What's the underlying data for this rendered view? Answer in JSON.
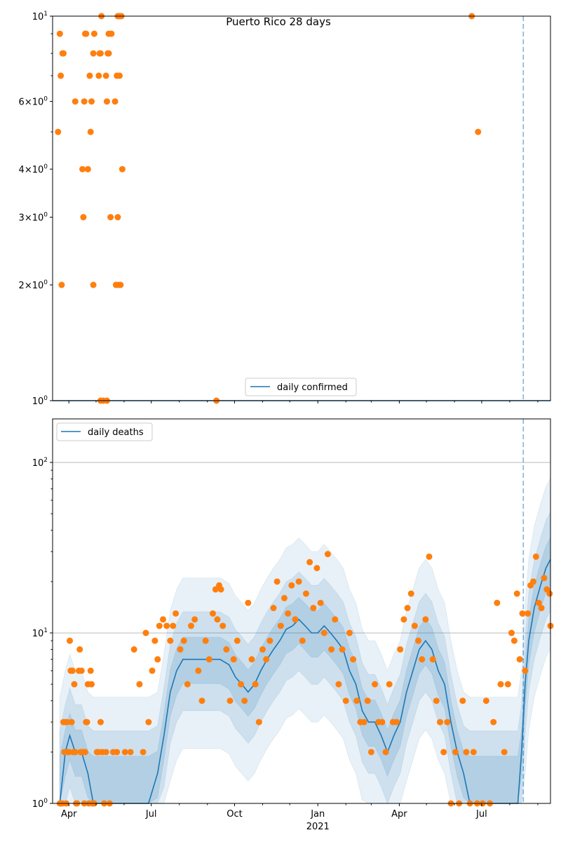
{
  "chart_data": [
    {
      "type": "scatter",
      "title": "Puerto Rico 28 days",
      "yscale": "log",
      "ylim": [
        1,
        10
      ],
      "xlim": [
        "2020-03-14",
        "2021-09-15"
      ],
      "forecast_line_date": "2021-08-16",
      "ytick_labels": [
        {
          "value": 1,
          "label": "10^0"
        },
        {
          "value": 2,
          "label": "2×10^0"
        },
        {
          "value": 3,
          "label": "3×10^0"
        },
        {
          "value": 4,
          "label": "4×10^0"
        },
        {
          "value": 6,
          "label": "6×10^0"
        },
        {
          "value": 10,
          "label": "10^1"
        }
      ],
      "legend": {
        "placement": "bottom-center",
        "entries": [
          "daily confirmed"
        ]
      },
      "line_series": {
        "name": "daily confirmed",
        "color": "#1f77b4",
        "value": 1
      },
      "points_color": "#ff7f0e",
      "points": [
        [
          "2020-03-20",
          5
        ],
        [
          "2020-03-22",
          9
        ],
        [
          "2020-03-23",
          7
        ],
        [
          "2020-03-24",
          2
        ],
        [
          "2020-03-25",
          8
        ],
        [
          "2020-03-26",
          8
        ],
        [
          "2020-04-08",
          6
        ],
        [
          "2020-04-16",
          4
        ],
        [
          "2020-04-17",
          3
        ],
        [
          "2020-04-18",
          6
        ],
        [
          "2020-04-19",
          9
        ],
        [
          "2020-04-20",
          9
        ],
        [
          "2020-04-22",
          4
        ],
        [
          "2020-04-24",
          7
        ],
        [
          "2020-04-25",
          5
        ],
        [
          "2020-04-26",
          6
        ],
        [
          "2020-04-28",
          8
        ],
        [
          "2020-04-28",
          2
        ],
        [
          "2020-04-29",
          9
        ],
        [
          "2020-05-04",
          7
        ],
        [
          "2020-05-05",
          8
        ],
        [
          "2020-05-06",
          8
        ],
        [
          "2020-05-07",
          10
        ],
        [
          "2020-05-12",
          7
        ],
        [
          "2020-05-13",
          6
        ],
        [
          "2020-05-14",
          8
        ],
        [
          "2020-05-15",
          9
        ],
        [
          "2020-05-15",
          8
        ],
        [
          "2020-05-17",
          3
        ],
        [
          "2020-05-18",
          9
        ],
        [
          "2020-05-22",
          6
        ],
        [
          "2020-05-23",
          2
        ],
        [
          "2020-05-24",
          7
        ],
        [
          "2020-05-25",
          3
        ],
        [
          "2020-05-25",
          10
        ],
        [
          "2020-05-26",
          2
        ],
        [
          "2020-05-27",
          10
        ],
        [
          "2020-05-27",
          7
        ],
        [
          "2020-05-28",
          2
        ],
        [
          "2020-05-29",
          10
        ],
        [
          "2020-05-30",
          4
        ],
        [
          "2021-06-20",
          10
        ],
        [
          "2021-06-27",
          5
        ]
      ],
      "zero_points": [
        "2020-05-06",
        "2020-05-09",
        "2020-05-13",
        "2020-09-11"
      ]
    },
    {
      "type": "line",
      "yscale": "log",
      "ylim": [
        1,
        180
      ],
      "xlim": [
        "2020-03-14",
        "2021-09-15"
      ],
      "forecast_line_date": "2021-08-16",
      "grid": "y-major",
      "ytick_labels": [
        {
          "value": 1,
          "label": "10^0"
        },
        {
          "value": 10,
          "label": "10^1"
        },
        {
          "value": 100,
          "label": "10^2"
        }
      ],
      "xtick_labels": [
        {
          "date": "2020-04-01",
          "label": "Apr"
        },
        {
          "date": "2020-07-01",
          "label": "Jul"
        },
        {
          "date": "2020-10-01",
          "label": "Oct"
        },
        {
          "date": "2021-01-01",
          "label": "Jan"
        },
        {
          "date": "2021-04-01",
          "label": "Apr"
        },
        {
          "date": "2021-07-01",
          "label": "Jul"
        }
      ],
      "xlabel_year": "2021",
      "legend": {
        "placement": "top-left",
        "entries": [
          "daily deaths"
        ]
      },
      "series": [
        {
          "name": "daily deaths",
          "color": "#1f77b4",
          "points": [
            [
              "2020-03-22",
              1
            ],
            [
              "2020-03-28",
              2
            ],
            [
              "2020-04-02",
              2.5
            ],
            [
              "2020-04-08",
              2
            ],
            [
              "2020-04-15",
              2
            ],
            [
              "2020-04-22",
              1.5
            ],
            [
              "2020-04-28",
              1
            ],
            [
              "2020-06-28",
              1
            ],
            [
              "2020-07-08",
              1.5
            ],
            [
              "2020-07-15",
              2.5
            ],
            [
              "2020-07-22",
              4.5
            ],
            [
              "2020-07-29",
              6
            ],
            [
              "2020-08-05",
              7
            ],
            [
              "2020-08-20",
              7
            ],
            [
              "2020-09-05",
              7
            ],
            [
              "2020-09-15",
              7
            ],
            [
              "2020-09-25",
              6.5
            ],
            [
              "2020-10-02",
              5.5
            ],
            [
              "2020-10-09",
              5
            ],
            [
              "2020-10-16",
              4.5
            ],
            [
              "2020-10-23",
              5
            ],
            [
              "2020-10-30",
              6
            ],
            [
              "2020-11-06",
              7
            ],
            [
              "2020-11-13",
              8
            ],
            [
              "2020-11-20",
              9
            ],
            [
              "2020-11-27",
              10.5
            ],
            [
              "2020-12-04",
              11
            ],
            [
              "2020-12-11",
              12
            ],
            [
              "2020-12-18",
              11
            ],
            [
              "2020-12-25",
              10
            ],
            [
              "2021-01-01",
              10
            ],
            [
              "2021-01-08",
              11
            ],
            [
              "2021-01-15",
              10
            ],
            [
              "2021-01-22",
              9
            ],
            [
              "2021-01-29",
              8
            ],
            [
              "2021-02-05",
              6
            ],
            [
              "2021-02-12",
              5
            ],
            [
              "2021-02-19",
              3.5
            ],
            [
              "2021-02-26",
              3
            ],
            [
              "2021-03-05",
              3
            ],
            [
              "2021-03-12",
              2.5
            ],
            [
              "2021-03-19",
              2
            ],
            [
              "2021-03-26",
              2.5
            ],
            [
              "2021-04-02",
              3
            ],
            [
              "2021-04-09",
              4.5
            ],
            [
              "2021-04-16",
              6
            ],
            [
              "2021-04-23",
              8
            ],
            [
              "2021-04-30",
              9
            ],
            [
              "2021-05-07",
              8
            ],
            [
              "2021-05-14",
              6
            ],
            [
              "2021-05-21",
              5
            ],
            [
              "2021-05-28",
              3
            ],
            [
              "2021-06-04",
              2
            ],
            [
              "2021-06-11",
              1.5
            ],
            [
              "2021-06-18",
              1
            ],
            [
              "2021-08-10",
              1
            ],
            [
              "2021-08-14",
              2
            ],
            [
              "2021-08-18",
              5
            ],
            [
              "2021-08-22",
              9
            ],
            [
              "2021-08-28",
              14
            ],
            [
              "2021-09-04",
              19
            ],
            [
              "2021-09-10",
              24
            ],
            [
              "2021-09-15",
              27
            ]
          ]
        }
      ],
      "band_color": "#1f77b4",
      "points_color": "#ff7f0e",
      "points": [
        [
          "2020-03-22",
          1
        ],
        [
          "2020-03-23",
          1
        ],
        [
          "2020-03-25",
          1
        ],
        [
          "2020-03-26",
          3
        ],
        [
          "2020-03-27",
          2
        ],
        [
          "2020-03-28",
          3
        ],
        [
          "2020-03-29",
          1
        ],
        [
          "2020-03-30",
          3
        ],
        [
          "2020-03-31",
          2
        ],
        [
          "2020-04-01",
          2
        ],
        [
          "2020-04-02",
          9
        ],
        [
          "2020-04-03",
          6
        ],
        [
          "2020-04-04",
          3
        ],
        [
          "2020-04-05",
          6
        ],
        [
          "2020-04-06",
          2
        ],
        [
          "2020-04-07",
          5
        ],
        [
          "2020-04-08",
          2
        ],
        [
          "2020-04-09",
          1
        ],
        [
          "2020-04-10",
          1
        ],
        [
          "2020-04-12",
          6
        ],
        [
          "2020-04-13",
          8
        ],
        [
          "2020-04-14",
          2
        ],
        [
          "2020-04-15",
          6
        ],
        [
          "2020-04-16",
          2
        ],
        [
          "2020-04-17",
          2
        ],
        [
          "2020-04-18",
          1
        ],
        [
          "2020-04-19",
          2
        ],
        [
          "2020-04-20",
          3
        ],
        [
          "2020-04-21",
          3
        ],
        [
          "2020-04-22",
          5
        ],
        [
          "2020-04-23",
          1
        ],
        [
          "2020-04-25",
          6
        ],
        [
          "2020-04-26",
          5
        ],
        [
          "2020-04-27",
          1
        ],
        [
          "2020-04-29",
          1
        ],
        [
          "2020-05-02",
          2
        ],
        [
          "2020-05-04",
          2
        ],
        [
          "2020-05-06",
          3
        ],
        [
          "2020-05-08",
          2
        ],
        [
          "2020-05-10",
          1
        ],
        [
          "2020-05-12",
          2
        ],
        [
          "2020-05-16",
          1
        ],
        [
          "2020-05-20",
          2
        ],
        [
          "2020-05-24",
          2
        ],
        [
          "2020-06-02",
          2
        ],
        [
          "2020-06-08",
          2
        ],
        [
          "2020-06-12",
          8
        ],
        [
          "2020-06-18",
          5
        ],
        [
          "2020-06-22",
          2
        ],
        [
          "2020-06-25",
          10
        ],
        [
          "2020-06-28",
          3
        ],
        [
          "2020-07-02",
          6
        ],
        [
          "2020-07-05",
          9
        ],
        [
          "2020-07-08",
          7
        ],
        [
          "2020-07-10",
          11
        ],
        [
          "2020-07-14",
          12
        ],
        [
          "2020-07-18",
          11
        ],
        [
          "2020-07-22",
          9
        ],
        [
          "2020-07-25",
          11
        ],
        [
          "2020-07-28",
          13
        ],
        [
          "2020-08-02",
          8
        ],
        [
          "2020-08-06",
          9
        ],
        [
          "2020-08-10",
          5
        ],
        [
          "2020-08-14",
          11
        ],
        [
          "2020-08-18",
          12
        ],
        [
          "2020-08-22",
          6
        ],
        [
          "2020-08-26",
          4
        ],
        [
          "2020-08-30",
          9
        ],
        [
          "2020-09-03",
          7
        ],
        [
          "2020-09-07",
          13
        ],
        [
          "2020-09-10",
          18
        ],
        [
          "2020-09-12",
          12
        ],
        [
          "2020-09-14",
          19
        ],
        [
          "2020-09-16",
          18
        ],
        [
          "2020-09-18",
          11
        ],
        [
          "2020-09-22",
          8
        ],
        [
          "2020-09-26",
          4
        ],
        [
          "2020-09-30",
          7
        ],
        [
          "2020-10-04",
          9
        ],
        [
          "2020-10-08",
          5
        ],
        [
          "2020-10-12",
          4
        ],
        [
          "2020-10-16",
          15
        ],
        [
          "2020-10-20",
          7
        ],
        [
          "2020-10-24",
          5
        ],
        [
          "2020-10-28",
          3
        ],
        [
          "2020-11-01",
          8
        ],
        [
          "2020-11-05",
          7
        ],
        [
          "2020-11-09",
          9
        ],
        [
          "2020-11-13",
          14
        ],
        [
          "2020-11-17",
          20
        ],
        [
          "2020-11-21",
          11
        ],
        [
          "2020-11-25",
          16
        ],
        [
          "2020-11-29",
          13
        ],
        [
          "2020-12-03",
          19
        ],
        [
          "2020-12-07",
          12
        ],
        [
          "2020-12-11",
          20
        ],
        [
          "2020-12-15",
          9
        ],
        [
          "2020-12-19",
          17
        ],
        [
          "2020-12-23",
          26
        ],
        [
          "2020-12-27",
          14
        ],
        [
          "2020-12-31",
          24
        ],
        [
          "2021-01-04",
          15
        ],
        [
          "2021-01-08",
          10
        ],
        [
          "2021-01-12",
          29
        ],
        [
          "2021-01-16",
          8
        ],
        [
          "2021-01-20",
          12
        ],
        [
          "2021-01-24",
          5
        ],
        [
          "2021-01-28",
          8
        ],
        [
          "2021-02-01",
          4
        ],
        [
          "2021-02-05",
          10
        ],
        [
          "2021-02-09",
          7
        ],
        [
          "2021-02-13",
          4
        ],
        [
          "2021-02-17",
          3
        ],
        [
          "2021-02-21",
          3
        ],
        [
          "2021-02-25",
          4
        ],
        [
          "2021-03-01",
          2
        ],
        [
          "2021-03-05",
          5
        ],
        [
          "2021-03-09",
          3
        ],
        [
          "2021-03-13",
          3
        ],
        [
          "2021-03-17",
          2
        ],
        [
          "2021-03-21",
          5
        ],
        [
          "2021-03-25",
          3
        ],
        [
          "2021-03-29",
          3
        ],
        [
          "2021-04-02",
          8
        ],
        [
          "2021-04-06",
          12
        ],
        [
          "2021-04-10",
          14
        ],
        [
          "2021-04-14",
          17
        ],
        [
          "2021-04-18",
          11
        ],
        [
          "2021-04-22",
          9
        ],
        [
          "2021-04-26",
          7
        ],
        [
          "2021-04-30",
          12
        ],
        [
          "2021-05-04",
          28
        ],
        [
          "2021-05-08",
          7
        ],
        [
          "2021-05-12",
          4
        ],
        [
          "2021-05-16",
          3
        ],
        [
          "2021-05-20",
          2
        ],
        [
          "2021-05-24",
          3
        ],
        [
          "2021-05-28",
          1
        ],
        [
          "2021-06-02",
          2
        ],
        [
          "2021-06-06",
          1
        ],
        [
          "2021-06-10",
          4
        ],
        [
          "2021-06-14",
          2
        ],
        [
          "2021-06-18",
          1
        ],
        [
          "2021-06-22",
          2
        ],
        [
          "2021-06-26",
          1
        ],
        [
          "2021-07-02",
          1
        ],
        [
          "2021-07-06",
          4
        ],
        [
          "2021-07-10",
          1
        ],
        [
          "2021-07-14",
          3
        ],
        [
          "2021-07-18",
          15
        ],
        [
          "2021-07-22",
          5
        ],
        [
          "2021-07-26",
          2
        ],
        [
          "2021-07-30",
          5
        ],
        [
          "2021-08-03",
          10
        ],
        [
          "2021-08-06",
          9
        ],
        [
          "2021-08-09",
          17
        ],
        [
          "2021-08-12",
          7
        ],
        [
          "2021-08-15",
          13
        ],
        [
          "2021-08-18",
          6
        ],
        [
          "2021-08-21",
          13
        ],
        [
          "2021-08-24",
          19
        ],
        [
          "2021-08-27",
          20
        ],
        [
          "2021-08-30",
          28
        ],
        [
          "2021-09-02",
          15
        ],
        [
          "2021-09-05",
          14
        ],
        [
          "2021-09-08",
          21
        ],
        [
          "2021-09-11",
          18
        ],
        [
          "2021-09-14",
          17
        ],
        [
          "2021-09-15",
          11
        ]
      ]
    }
  ]
}
